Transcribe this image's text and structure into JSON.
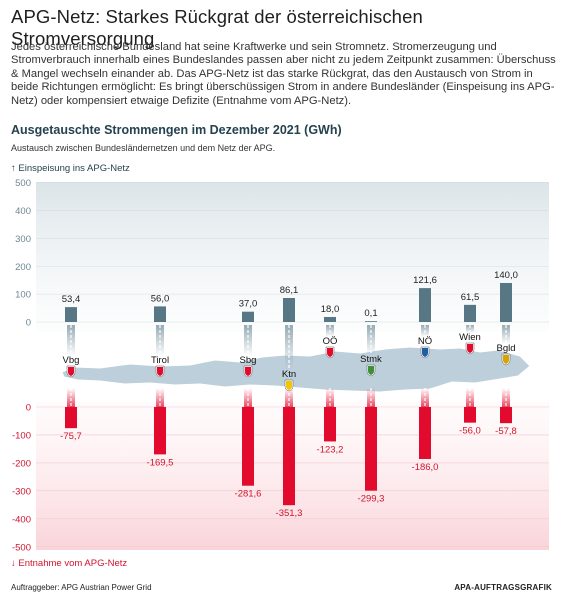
{
  "page": {
    "title": "APG-Netz: Starkes Rückgrat der österreichischen Stromversorgung",
    "intro": "Jedes österreichische Bundesland hat seine Kraftwerke und sein Stromnetz. Stromerzeugung und Stromverbrauch innerhalb eines Bundeslandes passen aber nicht zu jedem Zeitpunkt zusammen: Überschuss & Mangel wechseln einander ab. Das APG-Netz ist das starke Rückgrat, das den Austausch von Strom in beide Richtungen ermöglicht: Es bringt überschüssigen Strom in andere Bundesländer (Einspeisung ins APG-Netz) oder kompensiert etwaige Defizite (Entnahme vom APG-Netz).",
    "footer_left": "Auftraggeber: APG Austrian Power Grid",
    "footer_right": "APA-AUFTRAGSGRAFIK"
  },
  "colors": {
    "feed": "#587785",
    "draw": "#e30b2d",
    "map": "#bccfda",
    "axis_up": "#25424f"
  },
  "chart_data": {
    "type": "bar",
    "title": "Ausgetauschte Strommengen im Dezember 2021 (GWh)",
    "subtitle": "Austausch zwischen Bundesländernetzen und dem Netz der APG.",
    "upper_label": "↑ Einspeisung ins APG-Netz",
    "lower_label": "↓ Entnahme vom APG-Netz",
    "categories": [
      "Vbg",
      "Tirol",
      "Sbg",
      "Ktn",
      "OÖ",
      "Stmk",
      "NÖ",
      "Wien",
      "Bgld"
    ],
    "series": [
      {
        "name": "Einspeisung ins APG-Netz",
        "values": [
          53.4,
          56.0,
          37.0,
          86.1,
          18.0,
          0.1,
          121.6,
          61.5,
          140.0
        ],
        "labels": [
          "53,4",
          "56,0",
          "37,0",
          "86,1",
          "18,0",
          "0,1",
          "121,6",
          "61,5",
          "140,0"
        ]
      },
      {
        "name": "Entnahme vom APG-Netz",
        "values": [
          -75.7,
          -169.5,
          -281.6,
          -351.3,
          -123.2,
          -299.3,
          -186.0,
          -56.0,
          -57.8
        ],
        "labels": [
          "-75,7",
          "-169,5",
          "-281,6",
          "-351,3",
          "-123,2",
          "-299,3",
          "-186,0",
          "-56,0",
          "-57,8"
        ]
      }
    ],
    "upper_axis": {
      "ylim": [
        0,
        500
      ],
      "ticks": [
        "0",
        "100",
        "200",
        "300",
        "400",
        "500"
      ]
    },
    "lower_axis": {
      "ylim": [
        -500,
        0
      ],
      "ticks": [
        "0",
        "-100",
        "-200",
        "-300",
        "-400",
        "-500"
      ]
    },
    "grid": true
  }
}
